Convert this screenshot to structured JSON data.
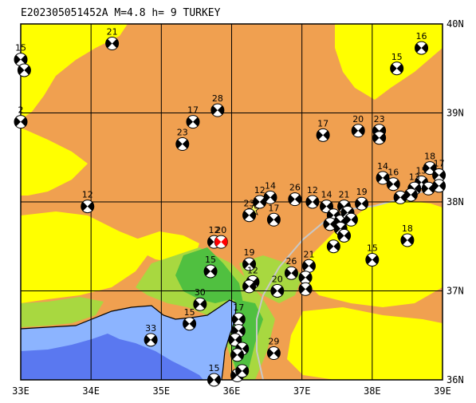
{
  "title": "E202305051452A  M=4.8  h=   9  TURKEY",
  "axes": {
    "lon_labels": [
      "33E",
      "34E",
      "35E",
      "36E",
      "37E",
      "38E",
      "39E"
    ],
    "lat_labels": [
      "36N",
      "37N",
      "38N",
      "39N",
      "40N"
    ],
    "lon_range": [
      33,
      39
    ],
    "lat_range": [
      36,
      40
    ]
  },
  "colors": {
    "land_low": "#f0a050",
    "highland_yellow": "#ffff00",
    "coastal_green": "#50c040",
    "lowland_green": "#a8d840",
    "sea_shallow": "#8cb4ff",
    "sea_deep": "#5a78f0",
    "grid": "#000000",
    "fault_line": "#c8c8c8",
    "highlighted_event": "#ff0000",
    "event_dark": "#000000",
    "event_light": "#ffffff",
    "star_marker": "#ffff66"
  },
  "highlight_event": {
    "depth_label": "20",
    "lon": 35.85,
    "lat": 37.55
  },
  "events": [
    {
      "label": "15",
      "lon": 33.0,
      "lat": 39.6
    },
    {
      "label": "",
      "lon": 33.05,
      "lat": 39.48
    },
    {
      "label": "21",
      "lon": 34.3,
      "lat": 39.78
    },
    {
      "label": "16",
      "lon": 38.7,
      "lat": 39.73
    },
    {
      "label": "15",
      "lon": 38.35,
      "lat": 39.5
    },
    {
      "label": "2",
      "lon": 33.0,
      "lat": 38.9
    },
    {
      "label": "28",
      "lon": 35.8,
      "lat": 39.03
    },
    {
      "label": "17",
      "lon": 35.45,
      "lat": 38.9
    },
    {
      "label": "23",
      "lon": 35.3,
      "lat": 38.65
    },
    {
      "label": "17",
      "lon": 37.3,
      "lat": 38.75
    },
    {
      "label": "20",
      "lon": 37.8,
      "lat": 38.8
    },
    {
      "label": "23",
      "lon": 38.1,
      "lat": 38.8
    },
    {
      "label": "",
      "lon": 38.1,
      "lat": 38.72
    },
    {
      "label": "12",
      "lon": 33.95,
      "lat": 37.95
    },
    {
      "label": "14",
      "lon": 38.15,
      "lat": 38.27
    },
    {
      "label": "16",
      "lon": 38.3,
      "lat": 38.2
    },
    {
      "label": "18",
      "lon": 38.82,
      "lat": 38.38
    },
    {
      "label": "17",
      "lon": 38.95,
      "lat": 38.3
    },
    {
      "label": "15",
      "lon": 38.7,
      "lat": 38.22
    },
    {
      "label": "13",
      "lon": 38.6,
      "lat": 38.15
    },
    {
      "label": "",
      "lon": 38.55,
      "lat": 38.08
    },
    {
      "label": "",
      "lon": 38.8,
      "lat": 38.15
    },
    {
      "label": "",
      "lon": 38.95,
      "lat": 38.18
    },
    {
      "label": "",
      "lon": 38.4,
      "lat": 38.05
    },
    {
      "label": "12",
      "lon": 37.15,
      "lat": 38.0
    },
    {
      "label": "14",
      "lon": 37.35,
      "lat": 37.95
    },
    {
      "label": "21",
      "lon": 37.6,
      "lat": 37.95
    },
    {
      "label": "19",
      "lon": 37.85,
      "lat": 37.98
    },
    {
      "label": "",
      "lon": 37.45,
      "lat": 37.85
    },
    {
      "label": "",
      "lon": 37.55,
      "lat": 37.78
    },
    {
      "label": "",
      "lon": 37.65,
      "lat": 37.88
    },
    {
      "label": "",
      "lon": 37.7,
      "lat": 37.8
    },
    {
      "label": "",
      "lon": 37.55,
      "lat": 37.7
    },
    {
      "label": "",
      "lon": 37.4,
      "lat": 37.75
    },
    {
      "label": "",
      "lon": 37.6,
      "lat": 37.62
    },
    {
      "label": "",
      "lon": 37.45,
      "lat": 37.5
    },
    {
      "label": "26",
      "lon": 36.9,
      "lat": 38.03
    },
    {
      "label": "14",
      "lon": 36.55,
      "lat": 38.05
    },
    {
      "label": "12",
      "lon": 36.4,
      "lat": 38.0
    },
    {
      "label": "17",
      "lon": 36.6,
      "lat": 37.8
    },
    {
      "label": "23",
      "lon": 36.25,
      "lat": 37.85
    },
    {
      "label": "18",
      "lon": 38.5,
      "lat": 37.57
    },
    {
      "label": "15",
      "lon": 38.0,
      "lat": 37.35
    },
    {
      "label": "19",
      "lon": 36.25,
      "lat": 37.3
    },
    {
      "label": "12",
      "lon": 36.3,
      "lat": 37.1
    },
    {
      "label": "",
      "lon": 36.25,
      "lat": 37.05
    },
    {
      "label": "15",
      "lon": 35.7,
      "lat": 37.22
    },
    {
      "label": "12",
      "lon": 35.75,
      "lat": 37.55
    },
    {
      "label": "26",
      "lon": 36.85,
      "lat": 37.2
    },
    {
      "label": "21",
      "lon": 37.1,
      "lat": 37.28
    },
    {
      "label": "",
      "lon": 37.05,
      "lat": 37.15
    },
    {
      "label": "20",
      "lon": 36.65,
      "lat": 37.0
    },
    {
      "label": "",
      "lon": 37.05,
      "lat": 37.02
    },
    {
      "label": "30",
      "lon": 35.55,
      "lat": 36.85
    },
    {
      "label": "15",
      "lon": 35.4,
      "lat": 36.63
    },
    {
      "label": "33",
      "lon": 34.85,
      "lat": 36.45
    },
    {
      "label": "17",
      "lon": 36.1,
      "lat": 36.68
    },
    {
      "label": "",
      "lon": 36.1,
      "lat": 36.55
    },
    {
      "label": "",
      "lon": 36.05,
      "lat": 36.45
    },
    {
      "label": "",
      "lon": 36.15,
      "lat": 36.35
    },
    {
      "label": "",
      "lon": 36.08,
      "lat": 36.28
    },
    {
      "label": "29",
      "lon": 36.6,
      "lat": 36.3
    },
    {
      "label": "15",
      "lon": 35.75,
      "lat": 36.0
    },
    {
      "label": "",
      "lon": 36.08,
      "lat": 36.05
    },
    {
      "label": "",
      "lon": 36.15,
      "lat": 36.1
    }
  ]
}
